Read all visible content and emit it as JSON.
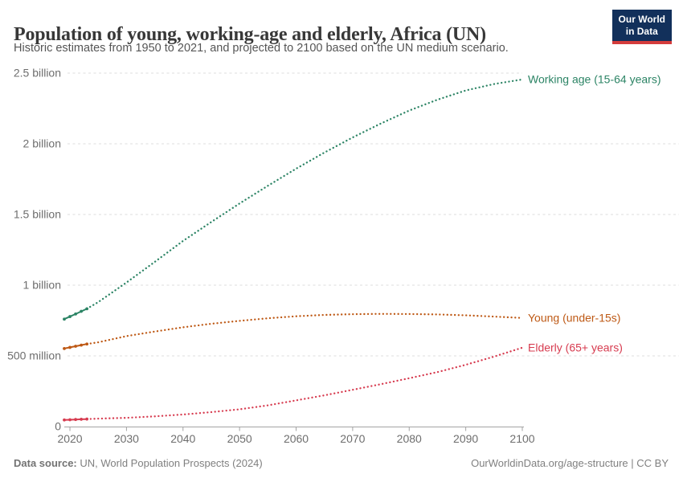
{
  "header": {
    "title": "Population of young, working-age and elderly, Africa (UN)",
    "subtitle": "Historic estimates from 1950 to 2021, and projected to 2100 based on the UN medium scenario.",
    "logo": {
      "line1": "Our World",
      "line2": "in Data",
      "bg_color": "#12305b",
      "accent_color": "#d43c3c"
    }
  },
  "footer": {
    "source_label": "Data source:",
    "source_text": " UN, World Population Prospects (2024)",
    "credit": "OurWorldinData.org/age-structure | CC BY"
  },
  "chart_data": {
    "type": "line",
    "title": "Population of young, working-age and elderly, Africa (UN)",
    "x_domain": [
      2019,
      2100
    ],
    "y_domain_millions": [
      0,
      2500
    ],
    "grid": "horizontal-dashed",
    "legend_position": "labels-at-line-ends-right",
    "x_ticks": [
      2020,
      2030,
      2040,
      2050,
      2060,
      2070,
      2080,
      2090,
      2100
    ],
    "y_ticks": [
      {
        "value": 0,
        "label": "0"
      },
      {
        "value": 500,
        "label": "500 million"
      },
      {
        "value": 1000,
        "label": "1 billion"
      },
      {
        "value": 1500,
        "label": "1.5 billion"
      },
      {
        "value": 2000,
        "label": "2 billion"
      },
      {
        "value": 2500,
        "label": "2.5 billion"
      }
    ],
    "style": {
      "grid_color": "#dcdcdc",
      "axis_color": "#a3a3a3",
      "tick_label_color": "#6e6e6e"
    },
    "series": [
      {
        "name": "Working age (15-64 years)",
        "color": "#2c8465",
        "historic": {
          "years": [
            2019,
            2020,
            2021,
            2022,
            2023
          ],
          "values_millions": [
            760,
            778,
            796,
            815,
            833
          ]
        },
        "projection": {
          "years": [
            2023,
            2025,
            2030,
            2035,
            2040,
            2045,
            2050,
            2055,
            2060,
            2065,
            2070,
            2075,
            2080,
            2085,
            2090,
            2095,
            2100
          ],
          "values_millions": [
            833,
            880,
            1019,
            1165,
            1313,
            1447,
            1578,
            1703,
            1824,
            1938,
            2045,
            2144,
            2235,
            2312,
            2377,
            2423,
            2455
          ]
        }
      },
      {
        "name": "Young (under-15s)",
        "color": "#be5915",
        "historic": {
          "years": [
            2019,
            2020,
            2021,
            2022,
            2023
          ],
          "values_millions": [
            552,
            560,
            568,
            576,
            584
          ]
        },
        "projection": {
          "years": [
            2023,
            2025,
            2030,
            2035,
            2040,
            2045,
            2050,
            2055,
            2060,
            2065,
            2070,
            2075,
            2080,
            2085,
            2090,
            2095,
            2100
          ],
          "values_millions": [
            584,
            596,
            640,
            672,
            702,
            727,
            748,
            766,
            780,
            790,
            795,
            797,
            796,
            793,
            787,
            778,
            768
          ]
        }
      },
      {
        "name": "Elderly (65+ years)",
        "color": "#d73c50",
        "historic": {
          "years": [
            2019,
            2020,
            2021,
            2022,
            2023
          ],
          "values_millions": [
            47,
            48.5,
            50,
            51.5,
            53
          ]
        },
        "projection": {
          "years": [
            2023,
            2025,
            2030,
            2035,
            2040,
            2045,
            2050,
            2055,
            2060,
            2065,
            2070,
            2075,
            2080,
            2085,
            2090,
            2095,
            2100
          ],
          "values_millions": [
            53,
            56,
            62,
            72,
            85,
            102,
            122,
            150,
            185,
            221,
            260,
            300,
            342,
            385,
            437,
            495,
            558
          ]
        }
      }
    ]
  }
}
